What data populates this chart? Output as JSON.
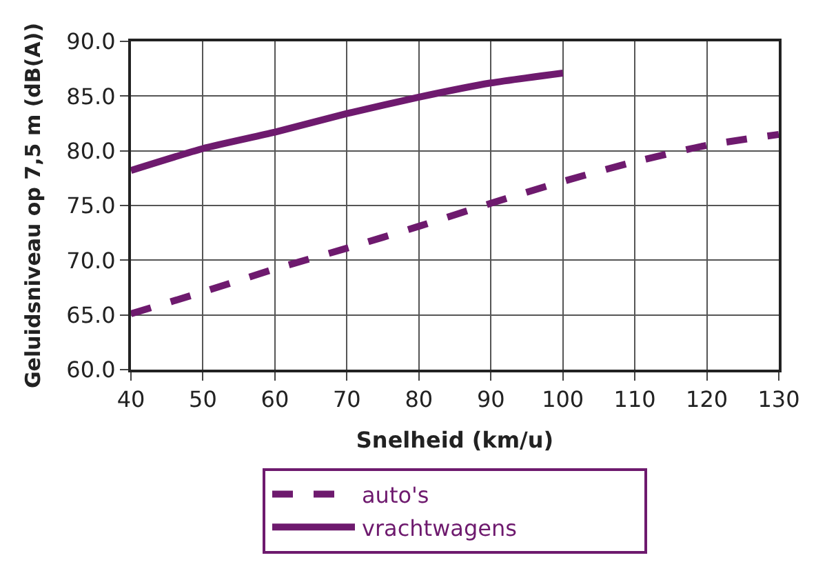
{
  "chart_data": {
    "type": "line",
    "xlabel": "Snelheid (km/u)",
    "ylabel": "Geluidsniveau op 7,5 m (dB(A))",
    "xlim": [
      40,
      130
    ],
    "xticks": [
      40,
      50,
      60,
      70,
      80,
      90,
      100,
      110,
      120,
      130
    ],
    "ylim": [
      60,
      90
    ],
    "yticks": [
      {
        "value": 60,
        "label": "60.0"
      },
      {
        "value": 65,
        "label": "65.0"
      },
      {
        "value": 70,
        "label": "70.0"
      },
      {
        "value": 75,
        "label": "75.0"
      },
      {
        "value": 80,
        "label": "80.0"
      },
      {
        "value": 85,
        "label": "85.0"
      },
      {
        "value": 90,
        "label": "90.0"
      }
    ],
    "grid": true,
    "legend": "bottom",
    "marker": "none",
    "series": [
      {
        "name": "auto's",
        "color": "#6e1a6e",
        "line_style": "dashed",
        "x": [
          40,
          50,
          60,
          70,
          80,
          90,
          100,
          110,
          120,
          130
        ],
        "values": [
          65.1,
          67.1,
          69.2,
          71.1,
          73.1,
          75.2,
          77.2,
          79.0,
          80.5,
          81.5
        ]
      },
      {
        "name": "vrachtwagens",
        "color": "#6e1a6e",
        "line_style": "solid",
        "x": [
          40,
          50,
          60,
          70,
          80,
          90,
          100
        ],
        "values": [
          78.2,
          80.2,
          81.7,
          83.4,
          84.9,
          86.2,
          87.1
        ]
      }
    ]
  }
}
